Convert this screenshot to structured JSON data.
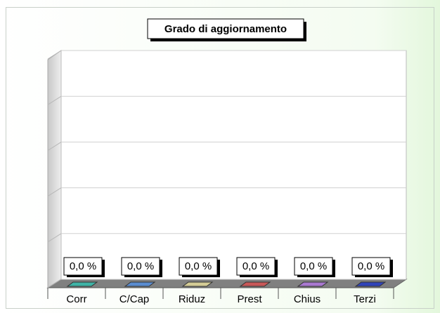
{
  "chart_data": {
    "type": "bar",
    "title": "Grado di aggiornamento",
    "categories": [
      "Corr",
      "C/Cap",
      "Riduz",
      "Prest",
      "Chius",
      "Terzi"
    ],
    "values": [
      0,
      0,
      0,
      0,
      0,
      0
    ],
    "value_labels": [
      "0,0 %",
      "0,0 %",
      "0,0 %",
      "0,0 %",
      "0,0 %",
      "0,0 %"
    ],
    "colors": [
      "#3fb3a6",
      "#5a8cd0",
      "#d4cc96",
      "#c85858",
      "#a978d0",
      "#3044b8"
    ],
    "ylim": [
      0,
      100
    ],
    "yticks": [
      0,
      20,
      40,
      60,
      80,
      100
    ],
    "grid": true
  }
}
